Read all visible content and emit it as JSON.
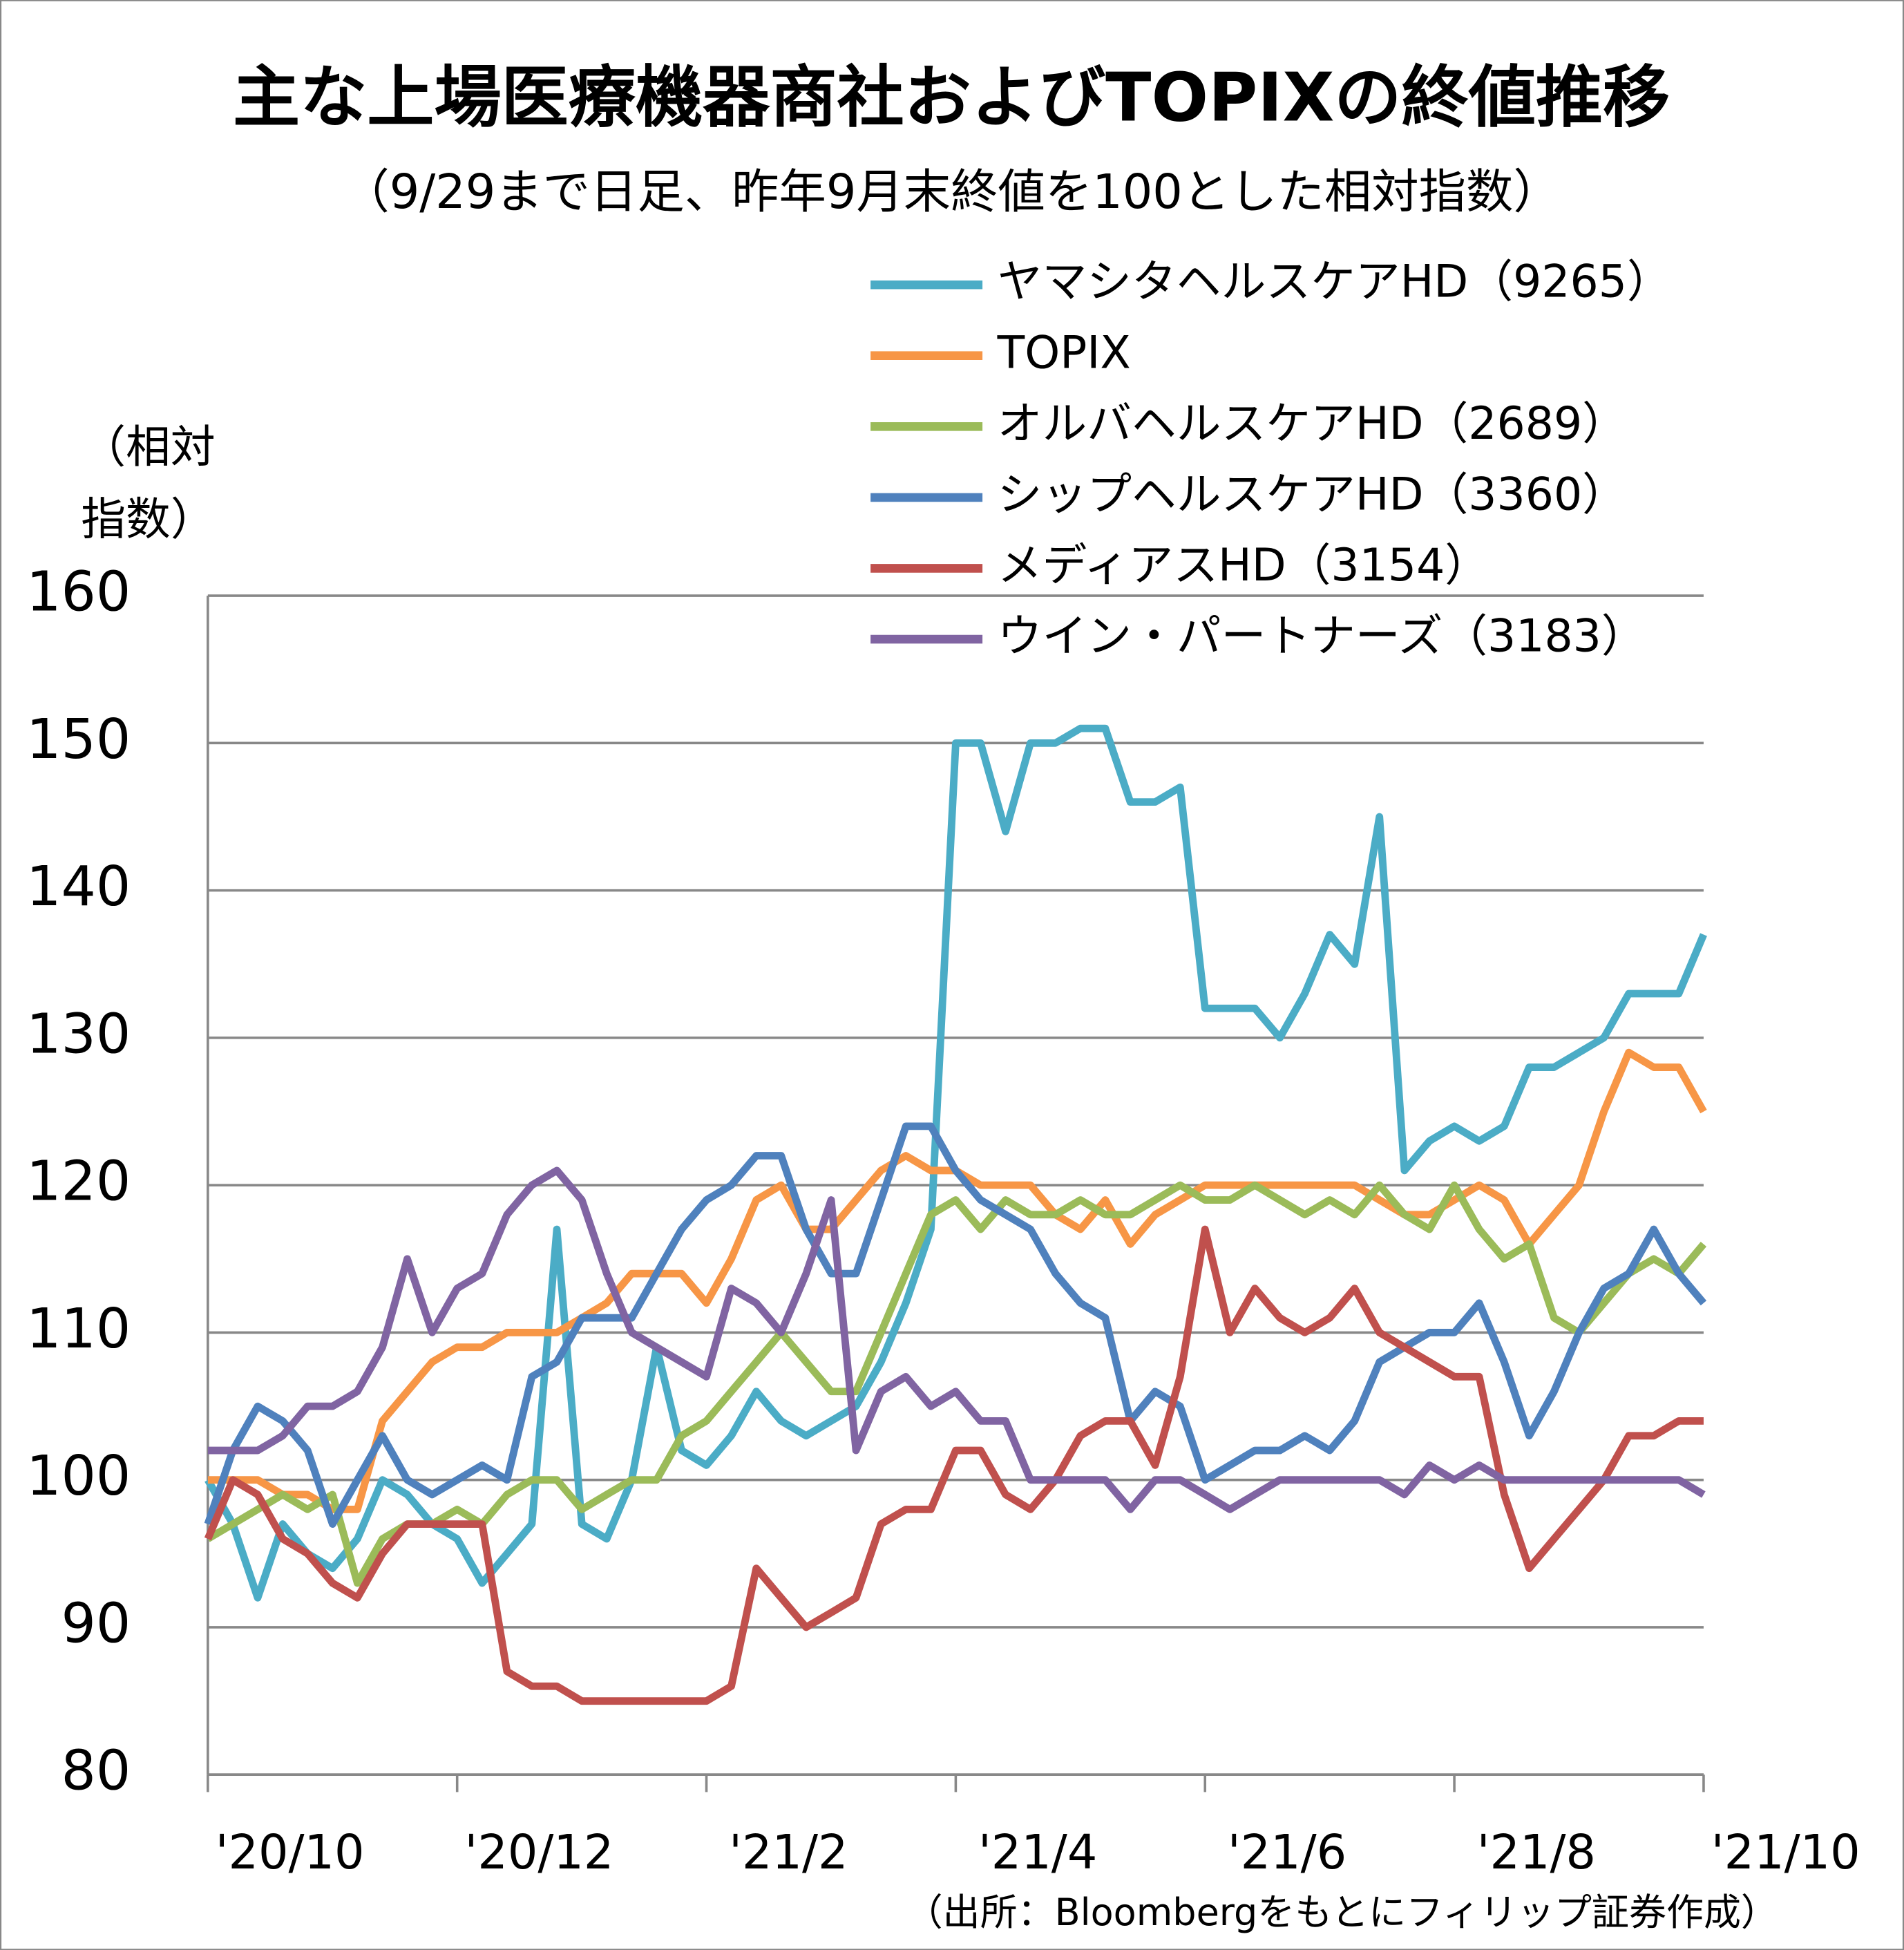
{
  "chart_data": {
    "type": "line",
    "title": "主な上場医療機器商社およびTOPIXの終値推移",
    "subtitle": "（9/29まで日足、昨年9月末終値を100とした相対指数）",
    "y_label": [
      "（相対",
      "指数）"
    ],
    "source": "（出所：Bloombergをもとにフィリップ証券作成）",
    "categories": [
      "'20/10",
      null,
      null,
      null,
      null,
      null,
      null,
      null,
      null,
      null,
      "'20/12",
      null,
      null,
      null,
      null,
      null,
      null,
      null,
      null,
      null,
      "'21/2",
      null,
      null,
      null,
      null,
      null,
      null,
      null,
      null,
      null,
      "'21/4",
      null,
      null,
      null,
      null,
      null,
      null,
      null,
      null,
      null,
      "'21/6",
      null,
      null,
      null,
      null,
      null,
      null,
      null,
      null,
      null,
      "'21/8",
      null,
      null,
      null,
      null,
      null,
      null,
      null,
      null,
      null,
      "'21/10"
    ],
    "ylim": [
      80,
      160
    ],
    "yticks": [
      80,
      90,
      100,
      110,
      120,
      130,
      140,
      150,
      160
    ],
    "grid": true,
    "legend": "top-right",
    "series": [
      {
        "name": "ヤマシタヘルスケアHD（9265）",
        "color": "#4bacc6",
        "values": [
          100,
          97,
          92,
          97,
          95,
          94,
          96,
          100,
          99,
          97,
          96,
          93,
          95,
          97,
          117,
          97,
          96,
          100,
          109,
          102,
          101,
          103,
          106,
          104,
          103,
          104,
          105,
          108,
          112,
          117,
          150,
          150,
          144,
          150,
          150,
          151,
          151,
          146,
          146,
          147,
          132,
          132,
          132,
          130,
          133,
          137,
          135,
          145,
          121,
          123,
          124,
          123,
          124,
          128,
          128,
          129,
          130,
          133,
          133,
          133,
          137
        ]
      },
      {
        "name": "TOPIX",
        "color": "#f79646",
        "values": [
          100,
          100,
          100,
          99,
          99,
          98,
          98,
          104,
          106,
          108,
          109,
          109,
          110,
          110,
          110,
          111,
          112,
          114,
          114,
          114,
          112,
          115,
          119,
          120,
          117,
          117,
          119,
          121,
          122,
          121,
          121,
          120,
          120,
          120,
          118,
          117,
          119,
          116,
          118,
          119,
          120,
          120,
          120,
          120,
          120,
          120,
          120,
          119,
          118,
          118,
          119,
          120,
          119,
          116,
          118,
          120,
          125,
          129,
          128,
          128,
          125
        ]
      },
      {
        "name": "オルバヘルスケアHD（2689）",
        "color": "#9bbb59",
        "values": [
          96,
          97,
          98,
          99,
          98,
          99,
          93,
          96,
          97,
          97,
          98,
          97,
          99,
          100,
          100,
          98,
          99,
          100,
          100,
          103,
          104,
          106,
          108,
          110,
          108,
          106,
          106,
          110,
          114,
          118,
          119,
          117,
          119,
          118,
          118,
          119,
          118,
          118,
          119,
          120,
          119,
          119,
          120,
          119,
          118,
          119,
          118,
          120,
          118,
          117,
          120,
          117,
          115,
          116,
          111,
          110,
          112,
          114,
          115,
          114,
          116
        ]
      },
      {
        "name": "シップヘルスケアHD（3360）",
        "color": "#4f81bd",
        "values": [
          97,
          102,
          105,
          104,
          102,
          97,
          100,
          103,
          100,
          99,
          100,
          101,
          100,
          107,
          108,
          111,
          111,
          111,
          114,
          117,
          119,
          120,
          122,
          122,
          117,
          114,
          114,
          119,
          124,
          124,
          121,
          119,
          118,
          117,
          114,
          112,
          111,
          104,
          106,
          105,
          100,
          101,
          102,
          102,
          103,
          102,
          104,
          108,
          109,
          110,
          110,
          112,
          108,
          103,
          106,
          110,
          113,
          114,
          117,
          114,
          112
        ]
      },
      {
        "name": "メディアスHD（3154）",
        "color": "#c0504d",
        "values": [
          96,
          100,
          99,
          96,
          95,
          93,
          92,
          95,
          97,
          97,
          97,
          97,
          87,
          86,
          86,
          85,
          85,
          85,
          85,
          85,
          85,
          86,
          94,
          92,
          90,
          91,
          92,
          97,
          98,
          98,
          102,
          102,
          99,
          98,
          100,
          103,
          104,
          104,
          101,
          107,
          117,
          110,
          113,
          111,
          110,
          111,
          113,
          110,
          109,
          108,
          107,
          107,
          99,
          94,
          96,
          98,
          100,
          103,
          103,
          104,
          104
        ]
      },
      {
        "name": "ウイン・パートナーズ（3183）",
        "color": "#8064a2",
        "values": [
          102,
          102,
          102,
          103,
          105,
          105,
          106,
          109,
          115,
          110,
          113,
          114,
          118,
          120,
          121,
          119,
          114,
          110,
          109,
          108,
          107,
          113,
          112,
          110,
          114,
          119,
          102,
          106,
          107,
          105,
          106,
          104,
          104,
          100,
          100,
          100,
          100,
          98,
          100,
          100,
          99,
          98,
          99,
          100,
          100,
          100,
          100,
          100,
          99,
          101,
          100,
          101,
          100,
          100,
          100,
          100,
          100,
          100,
          100,
          100,
          99
        ]
      }
    ]
  }
}
